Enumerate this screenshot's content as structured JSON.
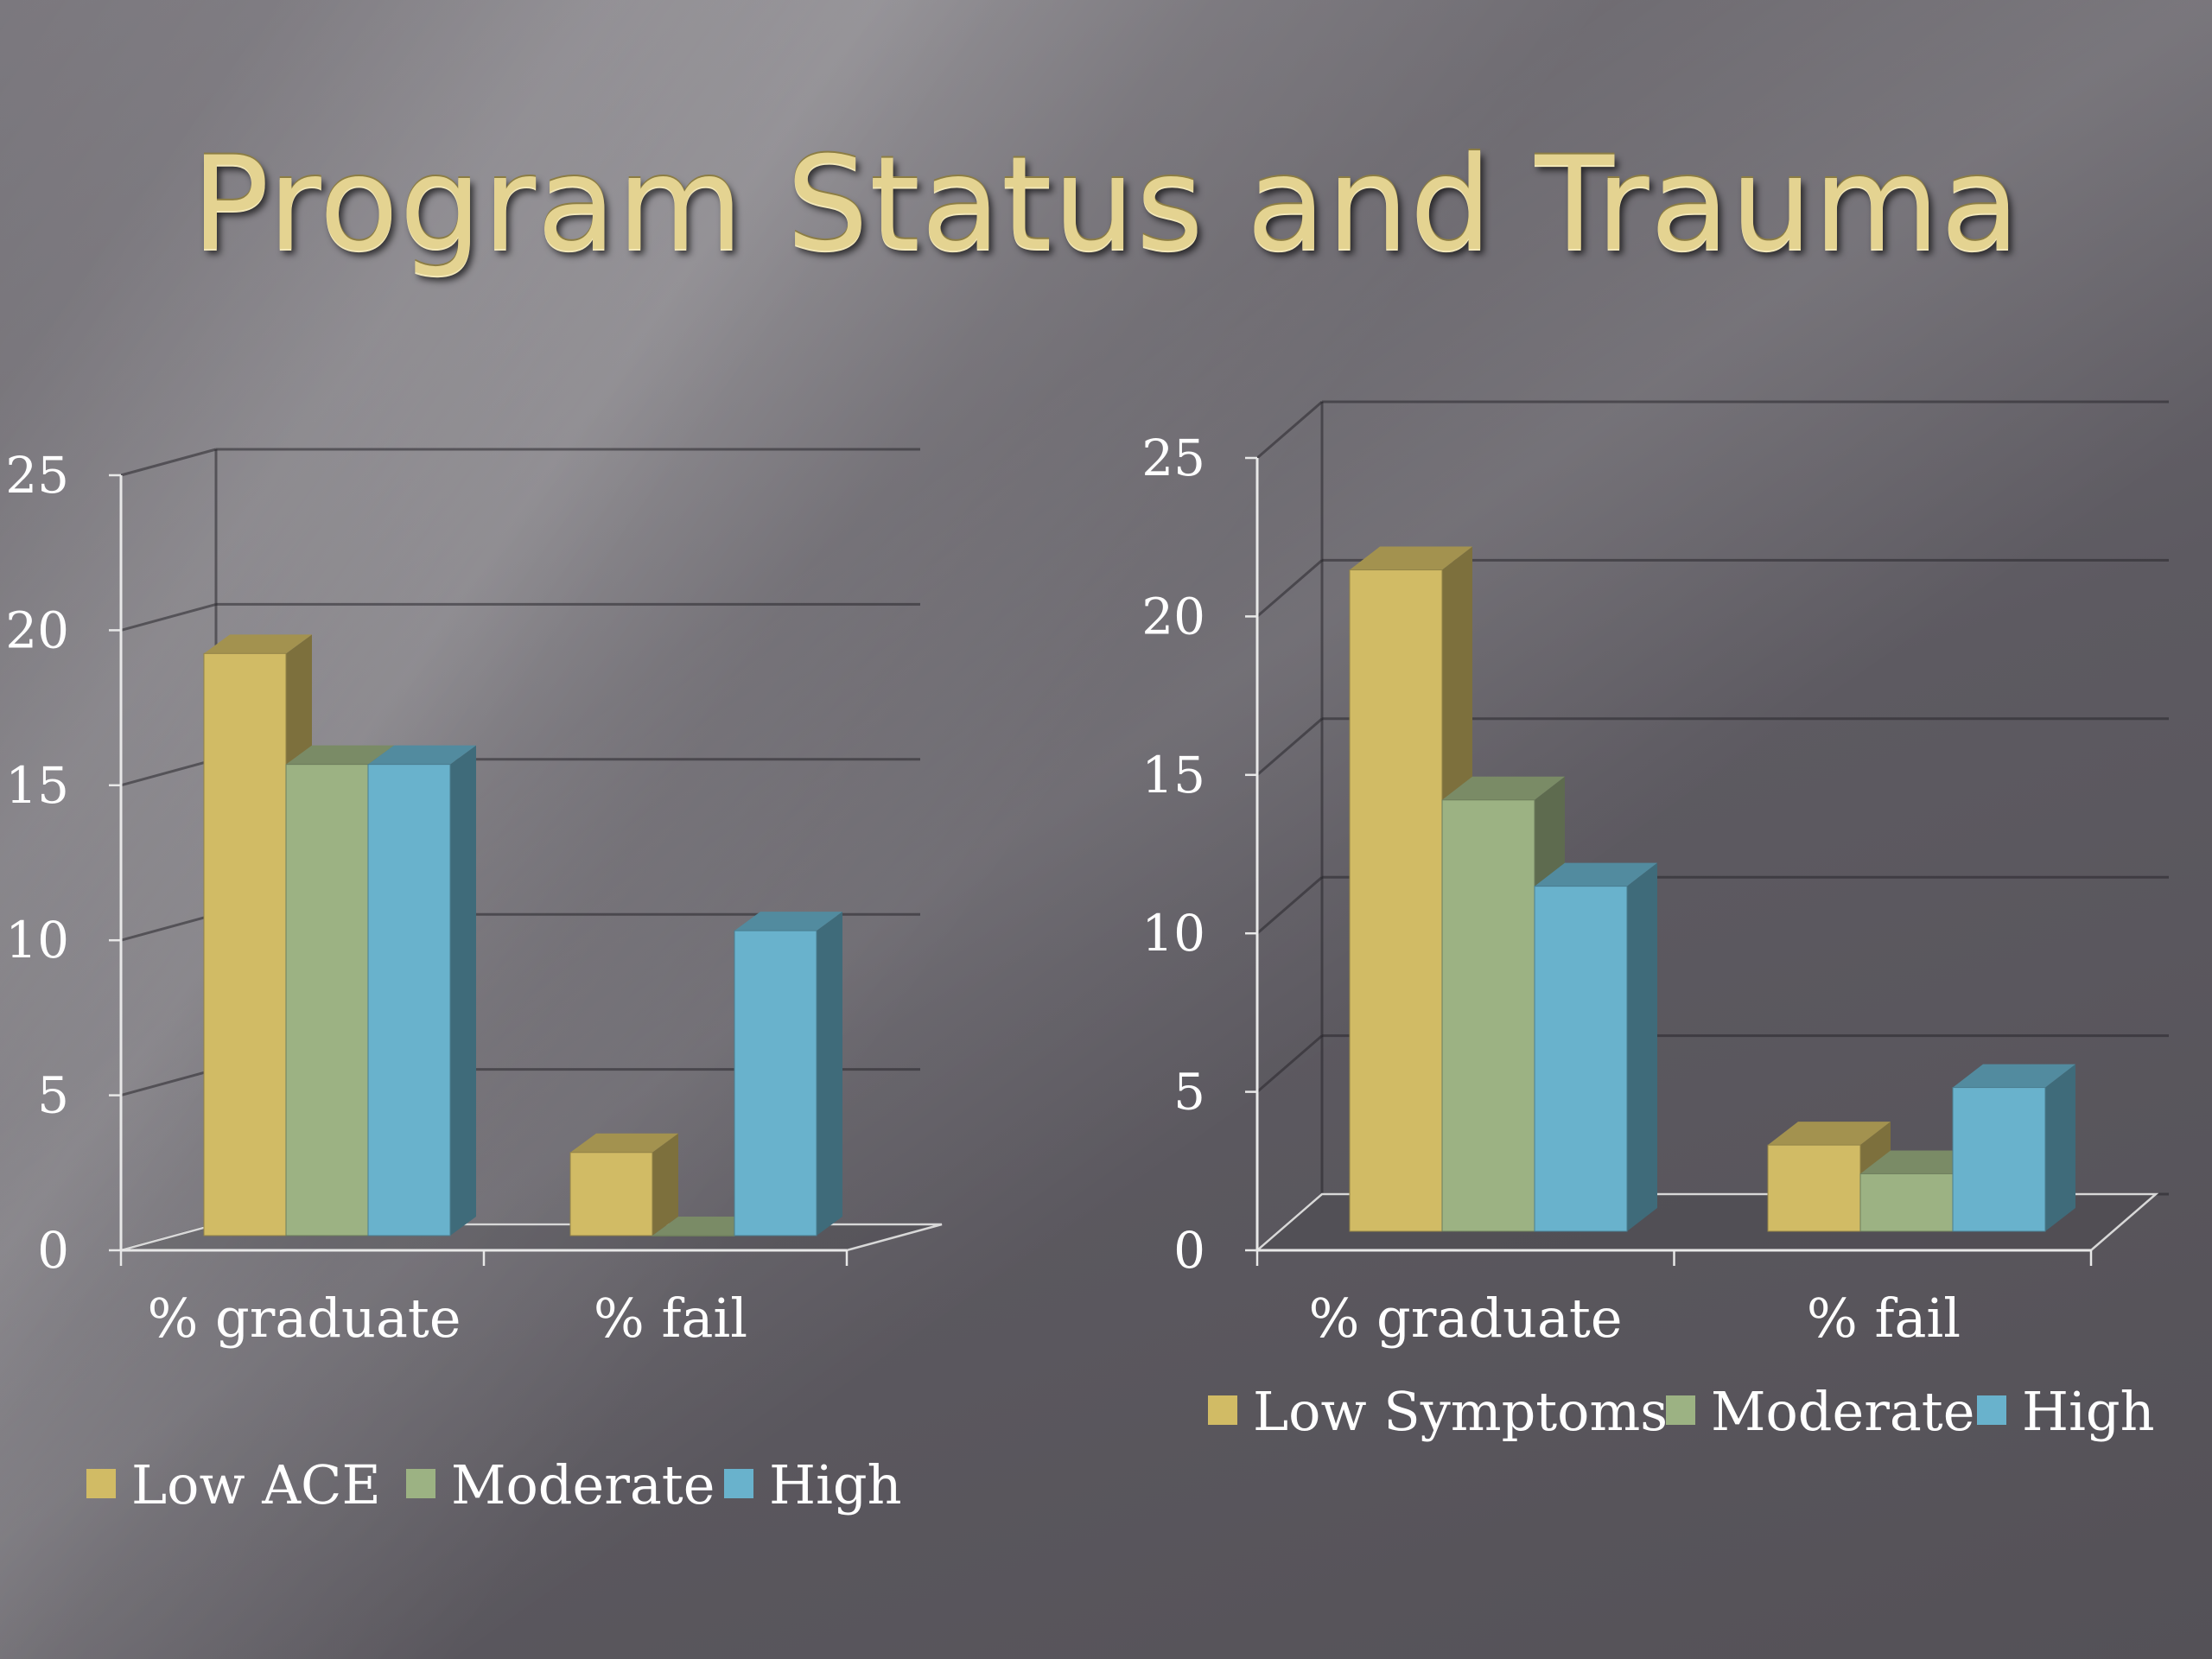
{
  "slide": {
    "title": "Program Status and Trauma"
  },
  "colors": {
    "low": "#d1bb65",
    "moderate": "#9cb283",
    "high": "#69b2cc"
  },
  "chart_data": [
    {
      "type": "bar",
      "title": "",
      "xlabel": "",
      "ylabel": "",
      "categories": [
        "% graduate",
        "% fail"
      ],
      "yticks": [
        "0",
        "5",
        "10",
        "15",
        "20",
        "25"
      ],
      "ylim": [
        0,
        25
      ],
      "grid": true,
      "legend_position": "bottom",
      "series": [
        {
          "name": "Low ACE",
          "values": [
            21,
            3
          ]
        },
        {
          "name": "Moderate",
          "values": [
            17,
            0
          ]
        },
        {
          "name": "High",
          "values": [
            17,
            11
          ]
        }
      ]
    },
    {
      "type": "bar",
      "title": "",
      "xlabel": "",
      "ylabel": "",
      "categories": [
        "% graduate",
        "% fail"
      ],
      "yticks": [
        "0",
        "5",
        "10",
        "15",
        "20",
        "25"
      ],
      "ylim": [
        0,
        25
      ],
      "grid": true,
      "legend_position": "bottom",
      "series": [
        {
          "name": "Low Symptoms",
          "values": [
            23,
            3
          ]
        },
        {
          "name": "Moderate",
          "values": [
            15,
            2
          ]
        },
        {
          "name": "High",
          "values": [
            12,
            5
          ]
        }
      ]
    }
  ]
}
